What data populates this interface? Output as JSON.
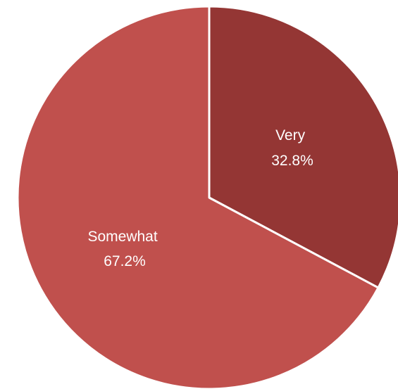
{
  "chart_data": {
    "type": "pie",
    "slices": [
      {
        "label": "Very",
        "value": 32.8,
        "display": "32.8%",
        "color": "#943634"
      },
      {
        "label": "Somewhat",
        "value": 67.2,
        "display": "67.2%",
        "color": "#c0504d"
      }
    ],
    "start_angle": "12 o'clock",
    "direction": "clockwise",
    "slice_border_color": "#ffffff",
    "legend": "none"
  }
}
